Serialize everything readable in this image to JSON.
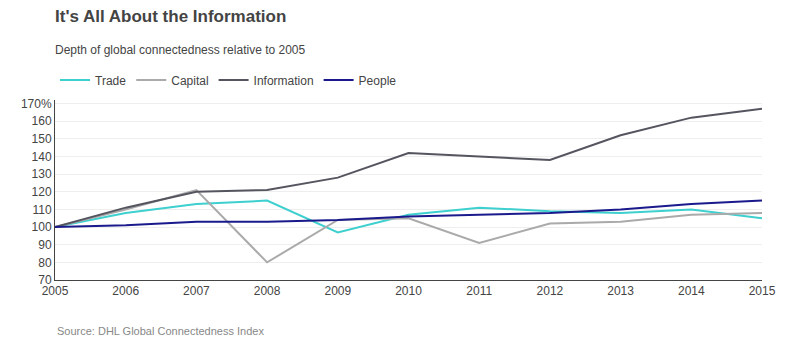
{
  "chart_data": {
    "type": "line",
    "title": "It's All About the Information",
    "subtitle": "Depth of global connectedness relative to 2005",
    "annotations": [
      "Source: DHL Global Connectedness Index"
    ],
    "x": [
      2005,
      2006,
      2007,
      2008,
      2009,
      2010,
      2011,
      2012,
      2013,
      2014,
      2015
    ],
    "series": [
      {
        "name": "Trade",
        "color": "#3ecfcf",
        "values": [
          100,
          108,
          113,
          115,
          97,
          107,
          111,
          109,
          108,
          110,
          105
        ]
      },
      {
        "name": "Capital",
        "color": "#aaaaaa",
        "values": [
          100,
          110,
          121,
          80,
          104,
          105,
          91,
          102,
          103,
          107,
          108
        ]
      },
      {
        "name": "Information",
        "color": "#555560",
        "values": [
          100,
          111,
          120,
          121,
          128,
          142,
          140,
          138,
          152,
          162,
          167
        ]
      },
      {
        "name": "People",
        "color": "#1a1a8c",
        "values": [
          100,
          101,
          103,
          103,
          104,
          106,
          107,
          108,
          110,
          113,
          115
        ]
      }
    ],
    "xlim": [
      2005,
      2015
    ],
    "xticks": [
      2005,
      2006,
      2007,
      2008,
      2009,
      2010,
      2011,
      2012,
      2013,
      2014,
      2015
    ],
    "ylim": [
      70,
      172
    ],
    "yticks": [
      70,
      80,
      90,
      100,
      110,
      120,
      130,
      140,
      150,
      160,
      {
        "value": 170,
        "label": "170%"
      }
    ],
    "grid": true,
    "legend": "top"
  }
}
